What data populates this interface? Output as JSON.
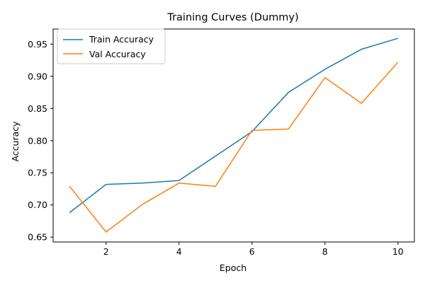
{
  "chart_data": {
    "type": "line",
    "title": "Training Curves (Dummy)",
    "xlabel": "Epoch",
    "ylabel": "Accuracy",
    "x": [
      1,
      2,
      3,
      4,
      5,
      6,
      7,
      8,
      9,
      10
    ],
    "xlim": [
      0.55,
      10.45
    ],
    "ylim": [
      0.6425,
      0.9735
    ],
    "xticks": [
      2,
      4,
      6,
      8,
      10
    ],
    "xtick_labels": [
      "2",
      "4",
      "6",
      "8",
      "10"
    ],
    "yticks": [
      0.65,
      0.7,
      0.75,
      0.8,
      0.85,
      0.9,
      0.95
    ],
    "ytick_labels": [
      "0.65",
      "0.70",
      "0.75",
      "0.80",
      "0.85",
      "0.90",
      "0.95"
    ],
    "grid": false,
    "legend_position": "upper-left",
    "series": [
      {
        "name": "Train Accuracy",
        "color": "#1f77b4",
        "values": [
          0.688,
          0.732,
          0.734,
          0.738,
          0.776,
          0.814,
          0.875,
          0.911,
          0.942,
          0.959
        ]
      },
      {
        "name": "Val Accuracy",
        "color": "#ff7f0e",
        "values": [
          0.729,
          0.658,
          0.701,
          0.734,
          0.729,
          0.816,
          0.818,
          0.898,
          0.858,
          0.922
        ]
      }
    ]
  }
}
